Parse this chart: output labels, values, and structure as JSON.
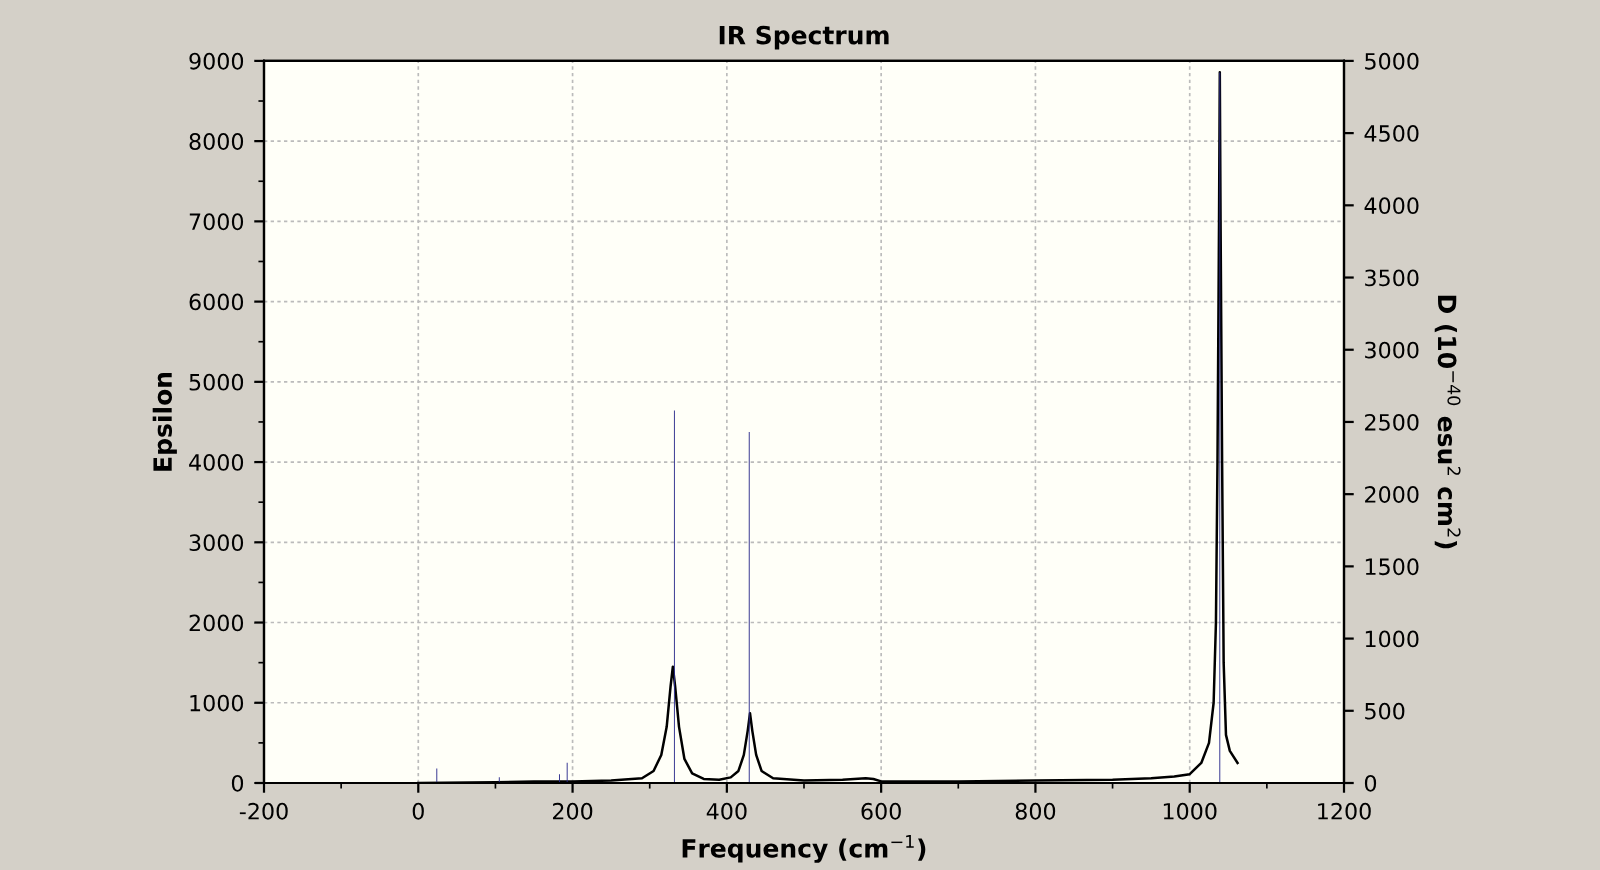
{
  "chart_data": {
    "type": "line",
    "title": "IR Spectrum",
    "xlabel": "Frequency (cm$^{−1}$)",
    "ylabel": "Epsilon",
    "y2label": "D (10$^{−40}$ esu$^{2}$ cm$^{2}$)",
    "series": [
      {
        "color": "#000000",
        "x": [
          0,
          100,
          150,
          200,
          250,
          290,
          305,
          315,
          322,
          327,
          330,
          333,
          338,
          345,
          355,
          370,
          390,
          405,
          415,
          422,
          427,
          430,
          433,
          438,
          445,
          460,
          500,
          550,
          580,
          590,
          600,
          700,
          800,
          900,
          950,
          980,
          1000,
          1015,
          1025,
          1031,
          1034,
          1036,
          1038,
          1039,
          1040,
          1042,
          1044,
          1047,
          1052,
          1062
        ],
        "values": [
          0,
          10,
          20,
          20,
          30,
          60,
          150,
          350,
          700,
          1200,
          1450,
          1200,
          700,
          300,
          120,
          50,
          40,
          70,
          150,
          350,
          650,
          870,
          650,
          350,
          150,
          60,
          30,
          40,
          60,
          50,
          20,
          20,
          30,
          40,
          60,
          80,
          110,
          250,
          500,
          1000,
          2000,
          4000,
          7000,
          8860,
          7000,
          4000,
          1500,
          600,
          400,
          250
        ]
      },
      {
        "type": "bar",
        "axis": "y2",
        "color": "#2b2b8c",
        "x": [
          24,
          105,
          183,
          193,
          332,
          429,
          585,
          1039
        ],
        "values": [
          100,
          40,
          60,
          140,
          2580,
          2430,
          null,
          4920
        ]
      }
    ],
    "xlim": [
      -200,
      1200
    ],
    "xticks": [
      -200,
      {
        "value": -100,
        "label": null
      },
      0,
      {
        "value": 100,
        "label": null
      },
      200,
      {
        "value": 300,
        "label": null
      },
      400,
      {
        "value": 500,
        "label": null
      },
      600,
      {
        "value": 700,
        "label": null
      },
      800,
      {
        "value": 900,
        "label": null
      },
      1000,
      {
        "value": 1100,
        "label": null
      },
      1200
    ],
    "ylim": [
      0,
      9000
    ],
    "yticks": [
      0,
      {
        "value": 500,
        "label": null
      },
      1000,
      {
        "value": 1500,
        "label": null
      },
      2000,
      {
        "value": 2500,
        "label": null
      },
      3000,
      {
        "value": 3500,
        "label": null
      },
      4000,
      {
        "value": 4500,
        "label": null
      },
      5000,
      {
        "value": 5500,
        "label": null
      },
      6000,
      {
        "value": 6500,
        "label": null
      },
      7000,
      {
        "value": 7500,
        "label": null
      },
      8000,
      {
        "value": 8500,
        "label": null
      },
      9000
    ],
    "y2lim": [
      0,
      5000
    ],
    "y2ticks": [
      0,
      500,
      1000,
      1500,
      2000,
      2500,
      3000,
      3500,
      4000,
      4500,
      5000
    ],
    "grid": true,
    "line_style": "solid"
  }
}
